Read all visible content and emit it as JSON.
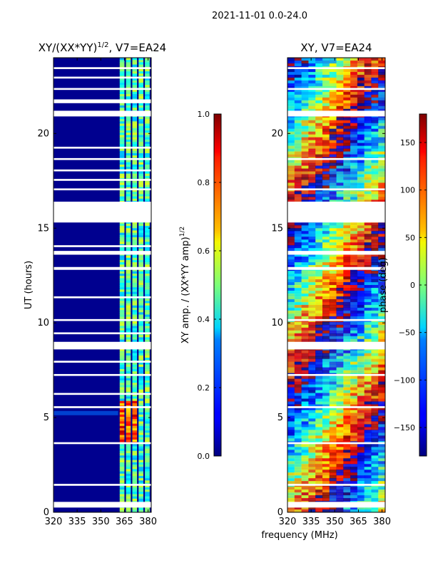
{
  "suptitle": "2021-11-01 0.0-24.0",
  "shared_xlabel": "frequency (MHz)",
  "chart_data": [
    {
      "type": "heatmap",
      "title_main": "XY/(XX*YY)",
      "title_exp": "1/2",
      "title_suffix": ", V7=EA24",
      "ylabel": "UT (hours)",
      "xlim": [
        320,
        382
      ],
      "ylim": [
        0,
        24
      ],
      "xticks": [
        320,
        335,
        350,
        365,
        380
      ],
      "yticks": [
        0,
        5,
        10,
        15,
        20
      ],
      "colorbar": {
        "label_main": "XY amp. / (XX*YY amp)",
        "label_exp": "1/2",
        "range": [
          0.0,
          1.0
        ],
        "ticks": [
          "0.0",
          "0.2",
          "0.4",
          "0.6",
          "0.8",
          "1.0"
        ]
      }
    },
    {
      "type": "heatmap",
      "title": "XY, V7=EA24",
      "xlim": [
        320,
        382
      ],
      "ylim": [
        0,
        24
      ],
      "xticks": [
        320,
        335,
        350,
        365,
        380
      ],
      "yticks": [
        0,
        5,
        10,
        15,
        20
      ],
      "colorbar": {
        "label": "phase (deg)",
        "range": [
          -180,
          180
        ],
        "ticks": [
          -150,
          -100,
          -50,
          0,
          50,
          100,
          150
        ]
      }
    }
  ]
}
